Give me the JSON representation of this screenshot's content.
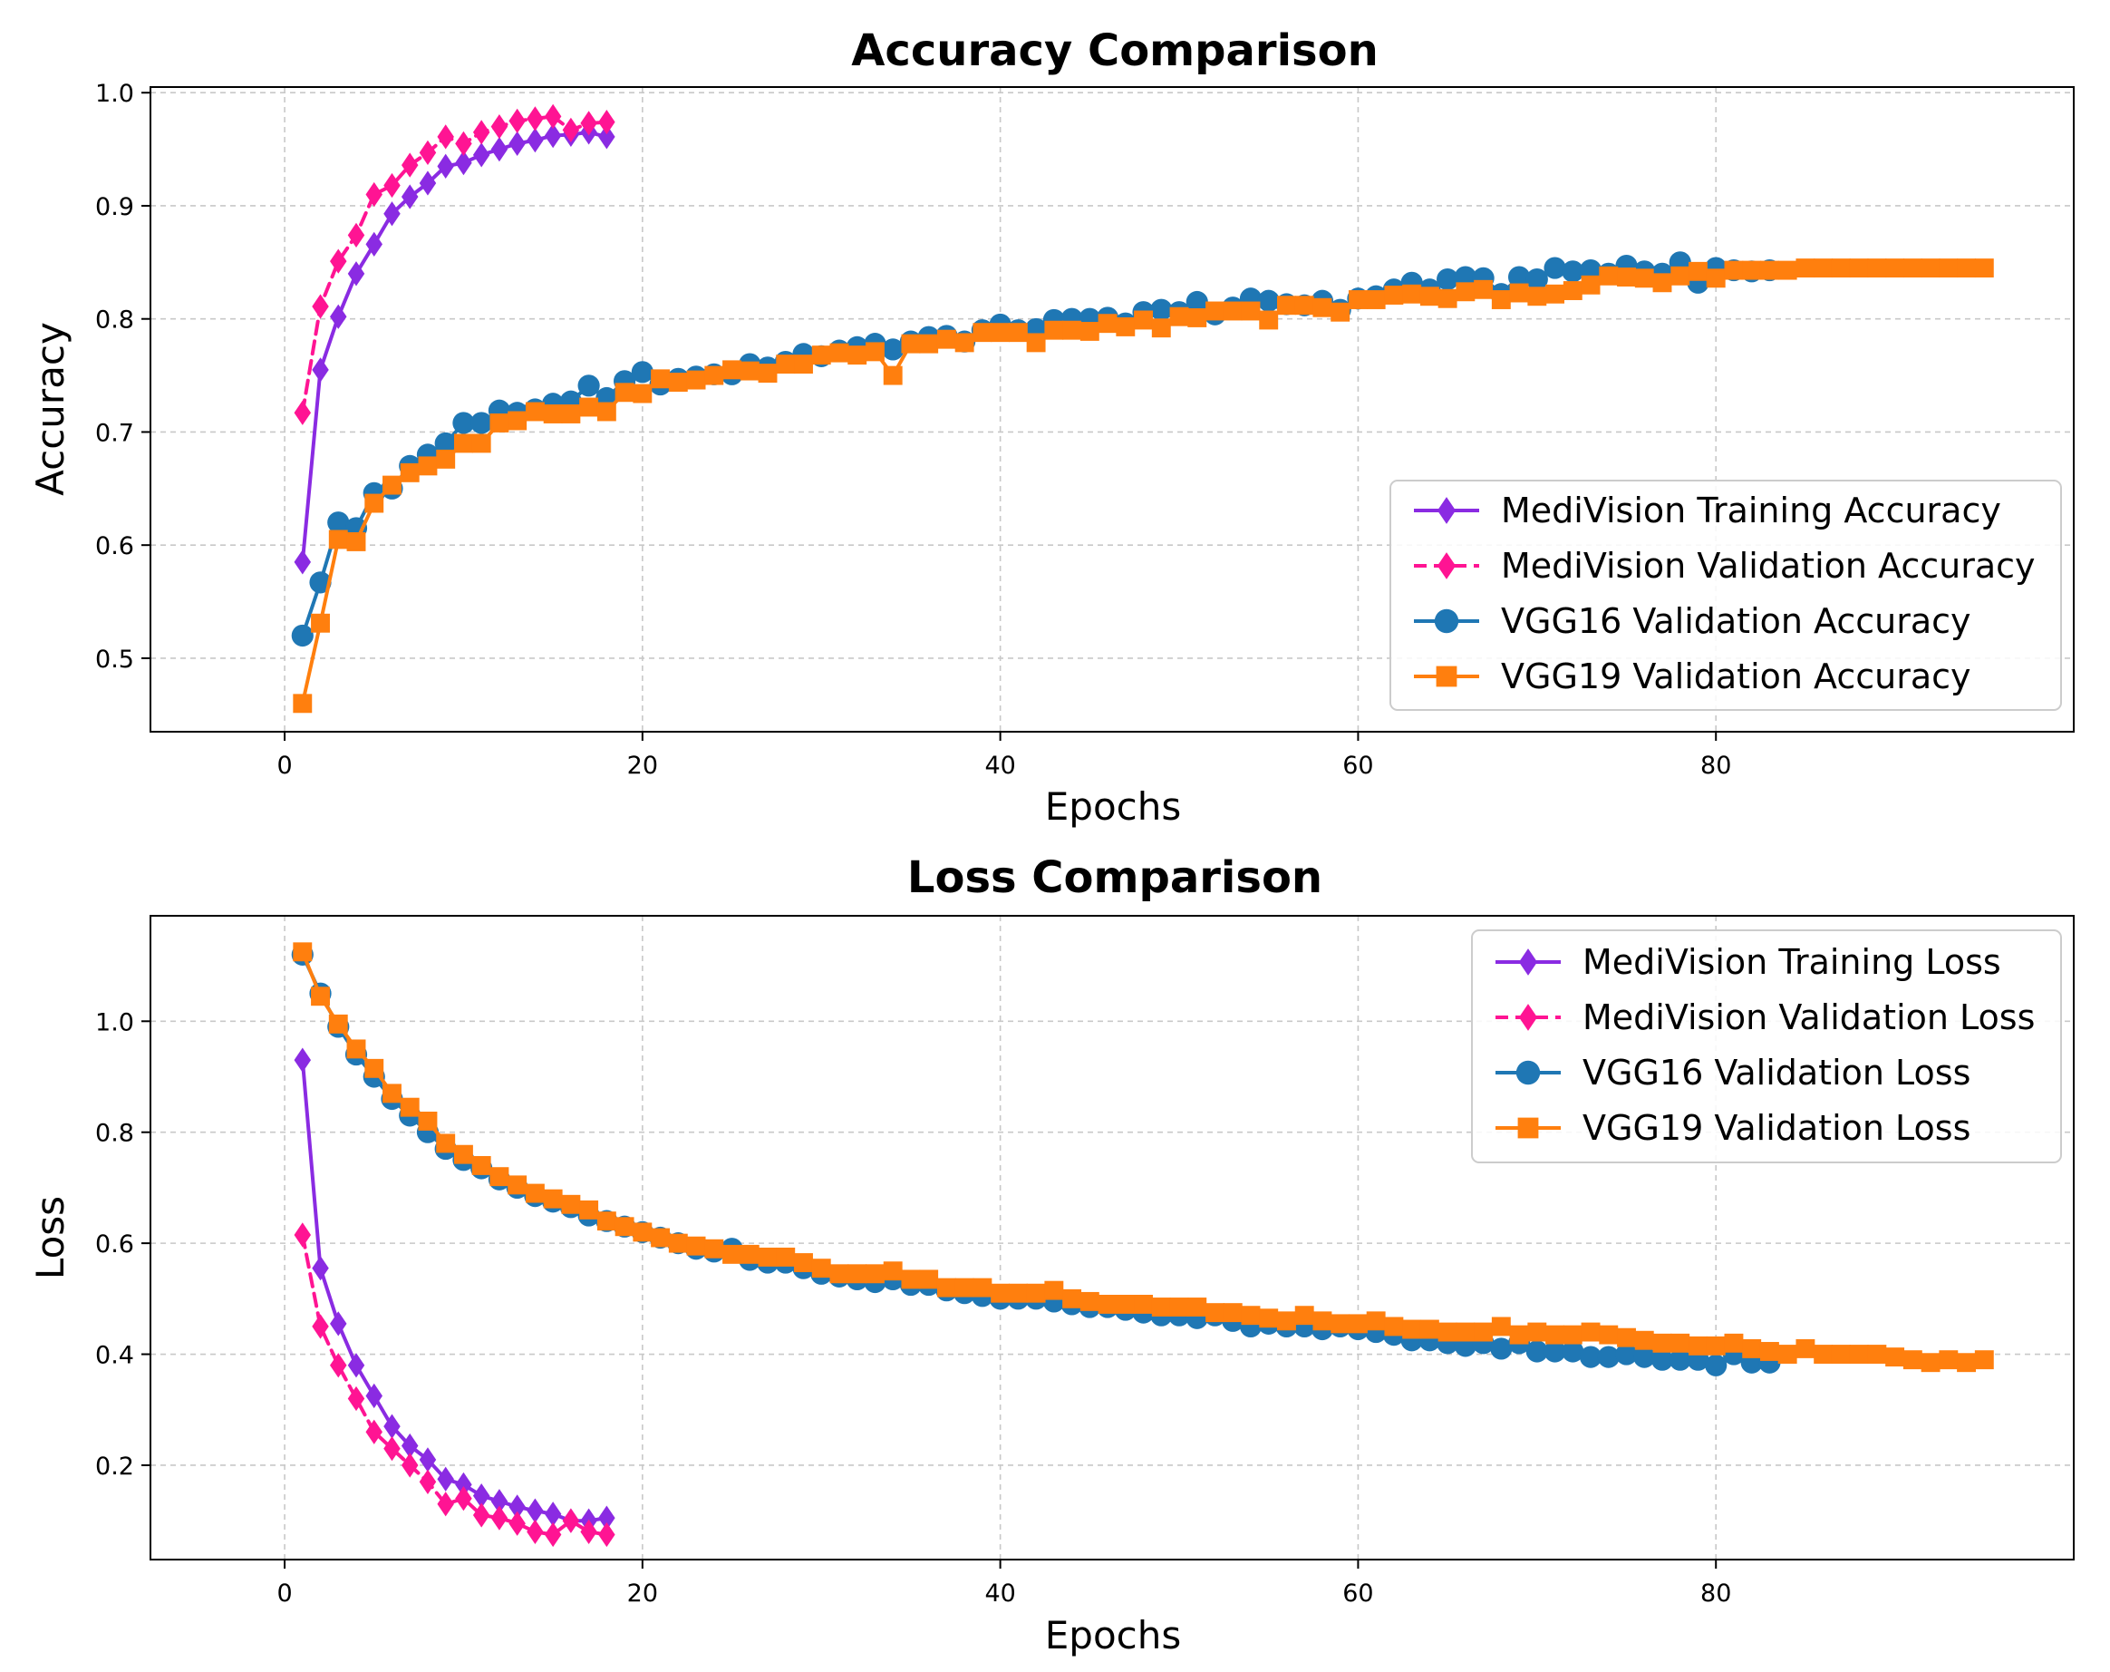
{
  "chart_data": [
    {
      "type": "line",
      "title": "Accuracy Comparison",
      "xlabel": "Epochs",
      "ylabel": "Accuracy",
      "xlim": [
        -7.5,
        100
      ],
      "ylim": [
        0.435,
        1.005
      ],
      "xticks": [
        0,
        20,
        40,
        60,
        80
      ],
      "yticks": [
        0.5,
        0.6,
        0.7,
        0.8,
        0.9,
        1.0
      ],
      "xtick_labels": [
        "0",
        "20",
        "40",
        "60",
        "80"
      ],
      "ytick_labels": [
        "0.5",
        "0.6",
        "0.7",
        "0.8",
        "0.9",
        "1.0"
      ],
      "grid": true,
      "legend_position": "lower-right",
      "series": [
        {
          "name": "MediVision Training Accuracy",
          "color": "#8A2BE2",
          "marker": "diamond",
          "linestyle": "solid",
          "x_start": 1,
          "values": [
            0.585,
            0.755,
            0.802,
            0.84,
            0.866,
            0.893,
            0.908,
            0.92,
            0.935,
            0.938,
            0.945,
            0.95,
            0.955,
            0.958,
            0.962,
            0.963,
            0.965,
            0.961
          ]
        },
        {
          "name": "MediVision Validation Accuracy",
          "color": "#FF1493",
          "marker": "diamond",
          "linestyle": "dashed",
          "x_start": 1,
          "values": [
            0.717,
            0.811,
            0.851,
            0.874,
            0.91,
            0.918,
            0.936,
            0.947,
            0.961,
            0.955,
            0.965,
            0.97,
            0.975,
            0.977,
            0.979,
            0.967,
            0.973,
            0.974
          ]
        },
        {
          "name": "VGG16 Validation Accuracy",
          "color": "#1F77B4",
          "marker": "circle",
          "linestyle": "solid",
          "x_start": 1,
          "values": [
            0.52,
            0.567,
            0.62,
            0.615,
            0.646,
            0.65,
            0.67,
            0.68,
            0.69,
            0.708,
            0.708,
            0.719,
            0.717,
            0.72,
            0.725,
            0.727,
            0.741,
            0.73,
            0.745,
            0.753,
            0.742,
            0.747,
            0.749,
            0.751,
            0.751,
            0.76,
            0.757,
            0.762,
            0.769,
            0.767,
            0.772,
            0.775,
            0.778,
            0.773,
            0.78,
            0.784,
            0.785,
            0.78,
            0.79,
            0.795,
            0.79,
            0.791,
            0.799,
            0.8,
            0.8,
            0.801,
            0.796,
            0.806,
            0.808,
            0.806,
            0.815,
            0.804,
            0.81,
            0.818,
            0.816,
            0.813,
            0.812,
            0.816,
            0.808,
            0.818,
            0.82,
            0.826,
            0.832,
            0.826,
            0.835,
            0.837,
            0.836,
            0.822,
            0.837,
            0.835,
            0.845,
            0.842,
            0.843,
            0.84,
            0.847,
            0.842,
            0.84,
            0.85,
            0.832,
            0.845,
            0.843,
            0.842,
            0.843
          ]
        },
        {
          "name": "VGG19 Validation Accuracy",
          "color": "#FF7F0E",
          "marker": "square",
          "linestyle": "solid",
          "x_start": 1,
          "values": [
            0.46,
            0.531,
            0.605,
            0.603,
            0.637,
            0.653,
            0.664,
            0.67,
            0.676,
            0.69,
            0.69,
            0.708,
            0.71,
            0.718,
            0.716,
            0.716,
            0.722,
            0.718,
            0.735,
            0.734,
            0.747,
            0.744,
            0.746,
            0.75,
            0.755,
            0.754,
            0.752,
            0.76,
            0.76,
            0.768,
            0.77,
            0.768,
            0.771,
            0.75,
            0.778,
            0.778,
            0.782,
            0.779,
            0.788,
            0.788,
            0.788,
            0.779,
            0.79,
            0.79,
            0.789,
            0.796,
            0.793,
            0.799,
            0.792,
            0.802,
            0.801,
            0.807,
            0.807,
            0.807,
            0.799,
            0.812,
            0.812,
            0.81,
            0.806,
            0.817,
            0.817,
            0.821,
            0.822,
            0.82,
            0.818,
            0.824,
            0.826,
            0.817,
            0.823,
            0.82,
            0.822,
            0.825,
            0.83,
            0.838,
            0.837,
            0.836,
            0.832,
            0.838,
            0.842,
            0.836,
            0.843,
            0.843,
            0.843,
            0.843,
            0.845,
            0.845,
            0.845,
            0.845,
            0.845,
            0.845,
            0.845,
            0.845,
            0.845,
            0.845,
            0.845
          ]
        }
      ]
    },
    {
      "type": "line",
      "title": "Loss Comparison",
      "xlabel": "Epochs",
      "ylabel": "Loss",
      "xlim": [
        -7.5,
        100
      ],
      "ylim": [
        0.03,
        1.19
      ],
      "xticks": [
        0,
        20,
        40,
        60,
        80
      ],
      "yticks": [
        0.2,
        0.4,
        0.6,
        0.8,
        1.0
      ],
      "xtick_labels": [
        "0",
        "20",
        "40",
        "60",
        "80"
      ],
      "ytick_labels": [
        "0.2",
        "0.4",
        "0.6",
        "0.8",
        "1.0"
      ],
      "grid": true,
      "legend_position": "upper-right",
      "series": [
        {
          "name": "MediVision Training Loss",
          "color": "#8A2BE2",
          "marker": "diamond",
          "linestyle": "solid",
          "x_start": 1,
          "values": [
            0.93,
            0.555,
            0.455,
            0.38,
            0.325,
            0.27,
            0.235,
            0.21,
            0.175,
            0.165,
            0.145,
            0.135,
            0.125,
            0.118,
            0.112,
            0.1,
            0.1,
            0.105
          ]
        },
        {
          "name": "MediVision Validation Loss",
          "color": "#FF1493",
          "marker": "diamond",
          "linestyle": "dashed",
          "x_start": 1,
          "values": [
            0.615,
            0.45,
            0.38,
            0.32,
            0.26,
            0.23,
            0.2,
            0.17,
            0.13,
            0.14,
            0.11,
            0.105,
            0.095,
            0.08,
            0.075,
            0.1,
            0.08,
            0.075
          ]
        },
        {
          "name": "VGG16 Validation Loss",
          "color": "#1F77B4",
          "marker": "circle",
          "linestyle": "solid",
          "x_start": 1,
          "values": [
            1.12,
            1.05,
            0.99,
            0.94,
            0.9,
            0.86,
            0.83,
            0.8,
            0.77,
            0.75,
            0.735,
            0.715,
            0.7,
            0.685,
            0.675,
            0.665,
            0.65,
            0.64,
            0.63,
            0.62,
            0.61,
            0.6,
            0.59,
            0.585,
            0.59,
            0.57,
            0.565,
            0.565,
            0.555,
            0.545,
            0.54,
            0.535,
            0.53,
            0.535,
            0.525,
            0.525,
            0.515,
            0.51,
            0.505,
            0.5,
            0.5,
            0.5,
            0.495,
            0.49,
            0.485,
            0.485,
            0.48,
            0.475,
            0.47,
            0.47,
            0.465,
            0.47,
            0.46,
            0.45,
            0.455,
            0.45,
            0.45,
            0.445,
            0.45,
            0.445,
            0.44,
            0.435,
            0.425,
            0.425,
            0.42,
            0.415,
            0.42,
            0.41,
            0.42,
            0.405,
            0.405,
            0.405,
            0.395,
            0.395,
            0.4,
            0.395,
            0.39,
            0.39,
            0.39,
            0.38,
            0.4,
            0.385,
            0.385
          ]
        },
        {
          "name": "VGG19 Validation Loss",
          "color": "#FF7F0E",
          "marker": "square",
          "linestyle": "solid",
          "x_start": 1,
          "values": [
            1.125,
            1.045,
            0.995,
            0.95,
            0.915,
            0.87,
            0.845,
            0.82,
            0.78,
            0.76,
            0.74,
            0.72,
            0.705,
            0.69,
            0.68,
            0.67,
            0.66,
            0.64,
            0.63,
            0.62,
            0.61,
            0.6,
            0.595,
            0.59,
            0.58,
            0.58,
            0.575,
            0.575,
            0.565,
            0.555,
            0.545,
            0.545,
            0.545,
            0.55,
            0.535,
            0.535,
            0.52,
            0.52,
            0.52,
            0.51,
            0.51,
            0.51,
            0.515,
            0.5,
            0.495,
            0.49,
            0.49,
            0.49,
            0.485,
            0.485,
            0.485,
            0.475,
            0.475,
            0.47,
            0.465,
            0.46,
            0.47,
            0.46,
            0.455,
            0.455,
            0.46,
            0.45,
            0.445,
            0.445,
            0.44,
            0.44,
            0.44,
            0.45,
            0.435,
            0.44,
            0.435,
            0.435,
            0.44,
            0.435,
            0.43,
            0.425,
            0.42,
            0.42,
            0.415,
            0.415,
            0.42,
            0.41,
            0.405,
            0.4,
            0.41,
            0.4,
            0.4,
            0.4,
            0.4,
            0.395,
            0.39,
            0.385,
            0.39,
            0.385,
            0.39
          ]
        }
      ]
    }
  ]
}
